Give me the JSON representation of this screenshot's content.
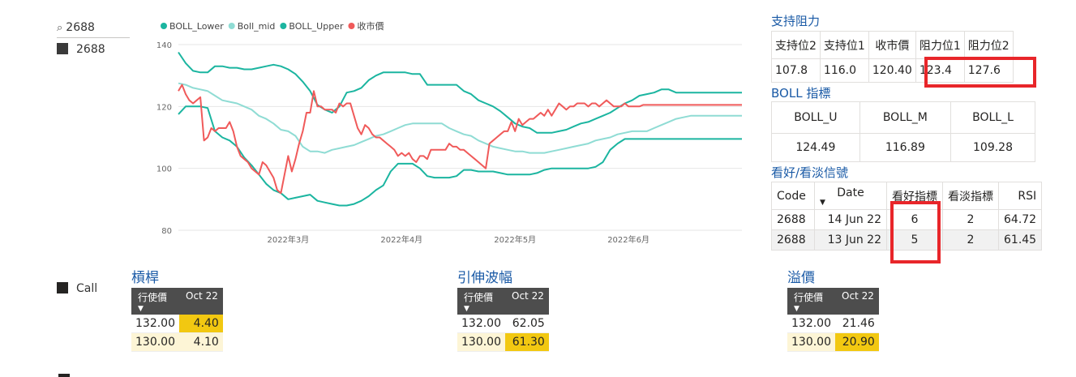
{
  "slicer": {
    "search_value": "2688",
    "items": [
      "2688"
    ]
  },
  "legend_filter": {
    "items": [
      "Call"
    ]
  },
  "chart_data": {
    "type": "line",
    "legend": [
      "BOLL_Lower",
      "Boll_mid",
      "BOLL_Upper",
      "收市價"
    ],
    "colors": {
      "BOLL_Lower": "#1bb5a0",
      "Boll_mid": "#8fdcd4",
      "BOLL_Upper": "#1bb5a0",
      "收市價": "#f05a5a"
    },
    "ylim": [
      80,
      140
    ],
    "yticks": [
      80,
      100,
      120,
      140
    ],
    "x_ticks": [
      "2022年3月",
      "2022年4月",
      "2022年5月",
      "2022年6月"
    ],
    "x_tick_pos": [
      30,
      61,
      92,
      123
    ],
    "x_range": [
      0,
      154
    ],
    "series": [
      {
        "name": "BOLL_Upper",
        "x": [
          0,
          2,
          4,
          6,
          8,
          10,
          12,
          14,
          16,
          18,
          20,
          22,
          24,
          26,
          28,
          30,
          32,
          34,
          36,
          38,
          40,
          42,
          44,
          46,
          48,
          50,
          52,
          54,
          56,
          58,
          60,
          62,
          64,
          66,
          68,
          70,
          72,
          74,
          76,
          78,
          80,
          82,
          84,
          86,
          88,
          90,
          92,
          94,
          96,
          98,
          100,
          102,
          104,
          106,
          108,
          110,
          112,
          114,
          116,
          118,
          120,
          122,
          124,
          126,
          128,
          130,
          132,
          134,
          136,
          138,
          140,
          142,
          144,
          146,
          148,
          150,
          152,
          154
        ],
        "values": [
          137.5,
          134,
          131.5,
          131,
          131,
          133,
          133,
          132.5,
          132.5,
          132,
          132,
          132.5,
          133,
          133.5,
          133,
          132,
          130.5,
          128,
          125,
          120.5,
          119,
          118,
          120,
          124.5,
          125,
          126,
          128.5,
          130,
          131,
          131,
          131,
          131,
          130.5,
          130.5,
          127,
          127,
          127,
          127,
          127,
          125,
          124,
          122,
          121,
          120,
          118.5,
          116.5,
          114.5,
          113.5,
          113,
          111.5,
          111.5,
          111.5,
          112,
          112.5,
          113.5,
          114.5,
          115,
          116,
          117,
          118,
          119.5,
          121,
          122,
          123.5,
          124,
          124.5,
          125.5,
          125.5,
          124.5,
          124.5,
          124.5,
          124.5,
          124.5,
          124.5,
          124.5,
          124.5,
          124.5,
          124.5
        ]
      },
      {
        "name": "Boll_mid",
        "x": [
          0,
          2,
          4,
          6,
          8,
          10,
          12,
          14,
          16,
          18,
          20,
          22,
          24,
          26,
          28,
          30,
          32,
          34,
          36,
          38,
          40,
          42,
          44,
          46,
          48,
          50,
          52,
          54,
          56,
          58,
          60,
          62,
          64,
          66,
          68,
          70,
          72,
          74,
          76,
          78,
          80,
          82,
          84,
          86,
          88,
          90,
          92,
          94,
          96,
          98,
          100,
          102,
          104,
          106,
          108,
          110,
          112,
          114,
          116,
          118,
          120,
          122,
          124,
          126,
          128,
          130,
          132,
          134,
          136,
          138,
          140,
          142,
          144,
          146,
          148,
          150,
          152,
          154
        ],
        "values": [
          127.5,
          127,
          126,
          125.5,
          125,
          123.5,
          122,
          121.5,
          121,
          120,
          119,
          117,
          116,
          114.5,
          112.5,
          112,
          110.5,
          107,
          105.5,
          105.5,
          105,
          106,
          106.5,
          107,
          107.5,
          108.5,
          109.5,
          110.5,
          111,
          112,
          113,
          114,
          114.5,
          114.5,
          114.5,
          114.5,
          114.5,
          113,
          112,
          111,
          110.5,
          109,
          108,
          107,
          106.5,
          106,
          105.5,
          105.5,
          105,
          105,
          105,
          105.5,
          106,
          106.5,
          107,
          107.5,
          108,
          109,
          109.5,
          110,
          111,
          111.5,
          112,
          112,
          112,
          113,
          114,
          115,
          116,
          116.5,
          117,
          117,
          117,
          117,
          117,
          117,
          117,
          117
        ]
      },
      {
        "name": "BOLL_Lower",
        "x": [
          0,
          2,
          4,
          6,
          8,
          10,
          12,
          14,
          16,
          18,
          20,
          22,
          24,
          26,
          28,
          30,
          32,
          34,
          36,
          38,
          40,
          42,
          44,
          46,
          48,
          50,
          52,
          54,
          56,
          58,
          60,
          62,
          64,
          66,
          68,
          70,
          72,
          74,
          76,
          78,
          80,
          82,
          84,
          86,
          88,
          90,
          92,
          94,
          96,
          98,
          100,
          102,
          104,
          106,
          108,
          110,
          112,
          114,
          116,
          118,
          120,
          122,
          124,
          126,
          128,
          130,
          132,
          134,
          136,
          138,
          140,
          142,
          144,
          146,
          148,
          150,
          152,
          154
        ],
        "values": [
          117.5,
          120,
          120,
          120,
          119.5,
          112,
          110,
          109,
          107,
          103.5,
          101,
          98,
          95,
          93,
          92,
          90,
          90.5,
          91,
          91.5,
          89.5,
          89,
          88.5,
          88,
          88,
          88.5,
          89.5,
          91,
          93,
          94.5,
          99,
          101.5,
          101.5,
          101.5,
          100,
          97.5,
          97,
          97,
          97,
          97.5,
          99.5,
          99.5,
          99,
          99,
          99,
          98.5,
          98,
          98,
          98,
          98,
          98.5,
          99.5,
          100,
          100,
          100,
          100,
          100,
          100,
          100.5,
          102,
          106,
          108,
          109.5,
          109.5,
          109.5,
          109.5,
          109.5,
          109.5,
          109.5,
          109.5,
          109.5,
          109.5,
          109.5,
          109.5,
          109.5,
          109.5,
          109.5,
          109.5,
          109.5
        ]
      },
      {
        "name": "收市價",
        "x": [
          0,
          1,
          2,
          3,
          4,
          5,
          6,
          7,
          8,
          9,
          10,
          11,
          12,
          13,
          14,
          15,
          16,
          17,
          18,
          19,
          20,
          21,
          22,
          23,
          24,
          25,
          26,
          27,
          28,
          29,
          30,
          31,
          32,
          33,
          34,
          35,
          36,
          37,
          38,
          39,
          40,
          41,
          42,
          43,
          44,
          45,
          46,
          47,
          48,
          49,
          50,
          51,
          52,
          53,
          54,
          55,
          56,
          57,
          58,
          59,
          60,
          61,
          62,
          63,
          64,
          65,
          66,
          67,
          68,
          69,
          70,
          71,
          72,
          73,
          74,
          75,
          76,
          77,
          78,
          79,
          80,
          81,
          82,
          83,
          84,
          85,
          86,
          87,
          88,
          89,
          90,
          91,
          92,
          93,
          94,
          95,
          96,
          97,
          98,
          99,
          100,
          101,
          102,
          103,
          104,
          105,
          106,
          107,
          108,
          109,
          110,
          111,
          112,
          113,
          114,
          115,
          116,
          117,
          118,
          119,
          120,
          121,
          122,
          123,
          124,
          125,
          126,
          127,
          128,
          129,
          130,
          131,
          132,
          133,
          134,
          135,
          136,
          137,
          138,
          139,
          140,
          141,
          142,
          143,
          144,
          145,
          146,
          147,
          148,
          149,
          150,
          151,
          152,
          153,
          154
        ],
        "values": [
          125,
          127,
          124,
          122,
          121,
          122,
          123,
          109,
          110,
          113,
          112,
          113,
          113,
          113,
          115,
          112,
          107,
          104,
          103,
          102,
          100,
          99,
          98,
          102,
          101,
          99,
          97,
          93,
          92,
          98,
          104,
          99,
          103,
          108,
          112,
          118,
          118,
          125,
          120,
          120,
          119,
          119,
          119,
          118,
          121,
          120,
          121,
          121,
          117,
          113,
          111,
          114,
          113,
          111,
          110,
          110,
          109,
          108,
          107,
          106,
          104,
          105,
          104,
          105,
          103,
          102,
          104,
          104,
          103,
          106,
          106,
          106,
          106,
          106,
          108,
          107,
          107,
          106,
          106,
          105,
          104,
          103,
          102,
          101,
          100,
          108,
          109,
          110,
          111,
          112,
          112,
          115,
          112,
          116,
          114,
          115,
          116,
          116,
          117,
          118,
          117,
          119,
          117,
          119,
          121,
          120,
          119,
          120,
          120,
          121,
          121,
          121,
          120,
          121,
          121,
          120,
          121,
          122,
          121,
          120,
          120,
          120,
          121,
          120,
          120,
          120,
          120,
          120.5,
          120.5,
          120.5,
          120.5,
          120.5,
          120.5,
          120.5,
          120.5,
          120.5,
          120.5,
          120.5,
          120.5,
          120.5,
          120.5,
          120.5,
          120.5,
          120.5,
          120.5,
          120.5,
          120.5,
          120.5,
          120.5,
          120.5,
          120.5,
          120.5,
          120.5,
          120.5,
          120.5
        ]
      }
    ]
  },
  "support_resistance": {
    "title": "支持阻力",
    "headers": [
      "支持位2",
      "支持位1",
      "收市價",
      "阻力位1",
      "阻力位2"
    ],
    "values": [
      "107.8",
      "116.0",
      "120.40",
      "123.4",
      "127.6"
    ]
  },
  "boll": {
    "title": "BOLL 指標",
    "headers": [
      "BOLL_U",
      "BOLL_M",
      "BOLL_L"
    ],
    "values": [
      "124.49",
      "116.89",
      "109.28"
    ]
  },
  "signals": {
    "title": "看好/看淡信號",
    "headers": [
      "Code",
      "Date",
      "看好指標",
      "看淡指標",
      "RSI"
    ],
    "rows": [
      [
        "2688",
        "14 Jun 22",
        "6",
        "2",
        "64.72"
      ],
      [
        "2688",
        "13 Jun 22",
        "5",
        "2",
        "61.45"
      ]
    ]
  },
  "leverage": {
    "title": "槓桿",
    "headers": [
      "行使價",
      "Oct 22"
    ],
    "rows": [
      [
        "132.00",
        "4.40"
      ],
      [
        "130.00",
        "4.10"
      ]
    ]
  },
  "extension": {
    "title": "引伸波幅",
    "headers": [
      "行使價",
      "Oct 22"
    ],
    "rows": [
      [
        "132.00",
        "62.05"
      ],
      [
        "130.00",
        "61.30"
      ]
    ]
  },
  "premium": {
    "title": "溢價",
    "headers": [
      "行使價",
      "Oct 22"
    ],
    "rows": [
      [
        "132.00",
        "21.46"
      ],
      [
        "130.00",
        "20.90"
      ]
    ]
  }
}
